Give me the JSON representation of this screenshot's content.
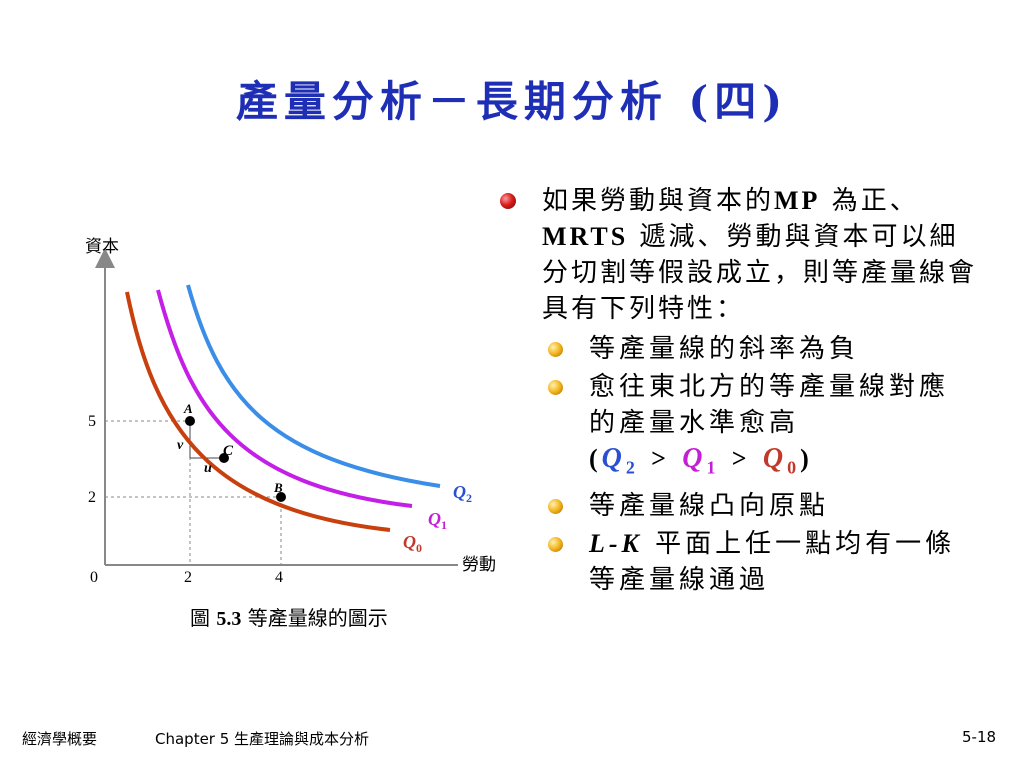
{
  "slide": {
    "title": "產量分析－長期分析 (四)"
  },
  "figure": {
    "ylabel": "資本",
    "xlabel": "勞動",
    "origin": "0",
    "x_ticks": [
      "2",
      "4"
    ],
    "y_ticks": [
      "5",
      "2"
    ],
    "points": {
      "a": "A",
      "b": "B",
      "c": "C"
    },
    "labels": {
      "v": "v",
      "u": "u"
    },
    "curves": {
      "q2": "Q",
      "q1": "Q",
      "q0": "Q"
    },
    "subscripts": {
      "q2": "2",
      "q1": "1",
      "q0": "0"
    },
    "colors": {
      "q2": "#3a8ee8",
      "q1": "#c41fe6",
      "q0": "#c8400e"
    },
    "caption_prefix": "圖",
    "caption_number": "5.3",
    "caption_text": "等產量線的圖示"
  },
  "bullets": {
    "main": {
      "part1": "如果勞動與資本的",
      "mp": "MP",
      "part2": "為正、",
      "mrts": "MRTS",
      "part3": "遞減、勞動與資本可以細分切割等假設成立，則等產量線會具有下列特性："
    },
    "sub1": "等產量線的斜率為負",
    "sub2": "愈往東北方的等產量線對應的產量水準愈高",
    "sub2_order": {
      "q": "Q",
      "s2": "2",
      "s1": "1",
      "s0": "0",
      "open": "(",
      "gt": ">",
      "close": ")"
    },
    "sub3": "等產量線凸向原點",
    "sub4": {
      "lk": "L-K",
      "text": "平面上任一點均有一條等產量線通過"
    }
  },
  "footer": {
    "book": "經濟學概要",
    "chapter": "Chapter 5 生產理論與成本分析",
    "page": "5-18"
  }
}
